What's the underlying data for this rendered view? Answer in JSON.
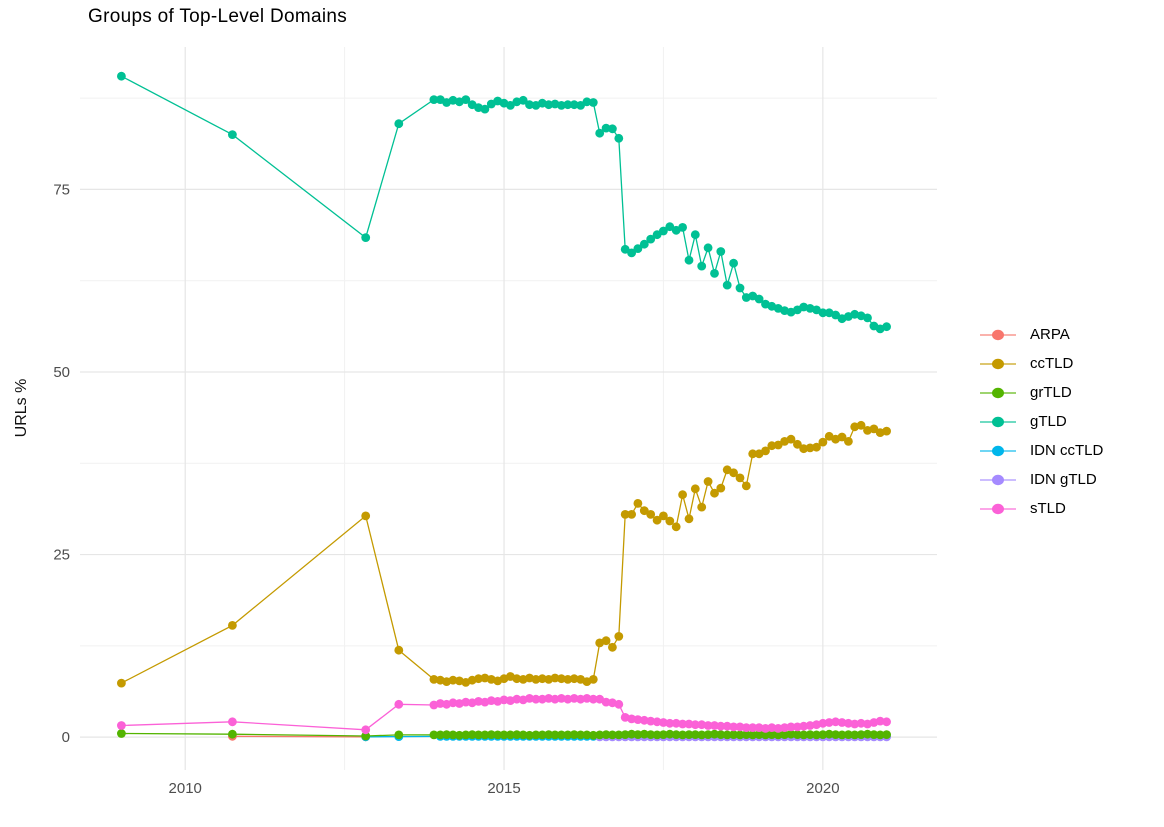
{
  "chart_data": {
    "type": "line",
    "title": "Groups of Top-Level Domains",
    "ylabel": "URLs %",
    "xlabel": "",
    "grid": true,
    "legend_position": "right",
    "xlim": [
      2008.35,
      2021.79
    ],
    "ylim": [
      -4.5,
      94.5
    ],
    "x_major_ticks": [
      2010,
      2015,
      2020
    ],
    "x_minor_ticks": [
      2012.5,
      2017.5
    ],
    "y_major_ticks": [
      0,
      25,
      50,
      75
    ],
    "y_minor_ticks": [
      12.5,
      37.5,
      62.5,
      87.5
    ],
    "colors": {
      "grid_major": "#e6e6e6",
      "grid_minor": "#f1f1f1",
      "tick_text": "#4d4d4d",
      "title_text": "#000000"
    },
    "series": [
      {
        "name": "ARPA",
        "color": "#F8766D",
        "zorder": 1,
        "points": [
          [
            2010.74,
            0.12
          ],
          [
            2012.83,
            0.05
          ]
        ]
      },
      {
        "name": "ccTLD",
        "color": "#C49A00",
        "zorder": 5,
        "points": [
          [
            2009.0,
            7.4
          ],
          [
            2010.74,
            15.3
          ],
          [
            2012.83,
            30.3
          ],
          [
            2013.35,
            11.9
          ],
          [
            2013.9,
            7.9
          ]
        ],
        "dense": {
          "x0": 2014.0,
          "dx": 0.1,
          "y": [
            7.8,
            7.6,
            7.8,
            7.7,
            7.5,
            7.8,
            8.0,
            8.1,
            7.9,
            7.7,
            8.0,
            8.3,
            8.0,
            7.9,
            8.1,
            7.9,
            8.0,
            7.9,
            8.1,
            8.0,
            7.9,
            8.0,
            7.9,
            7.6,
            7.9,
            12.9,
            13.2,
            12.3,
            13.8,
            30.5,
            30.5,
            32.0,
            31.0,
            30.5,
            29.7,
            30.3,
            29.6,
            28.8,
            33.2,
            29.9,
            34.0,
            31.5,
            35.0,
            33.4,
            34.1,
            36.6,
            36.2,
            35.5,
            34.4,
            38.8,
            38.8,
            39.2,
            39.9,
            40.0,
            40.5,
            40.8,
            40.1,
            39.5,
            39.6,
            39.7,
            40.4,
            41.2,
            40.8,
            41.1,
            40.5,
            42.5,
            42.7,
            42.0,
            42.2,
            41.7,
            41.9
          ]
        }
      },
      {
        "name": "grTLD",
        "color": "#53B400",
        "zorder": 4,
        "points": [
          [
            2009.0,
            0.5
          ],
          [
            2010.74,
            0.4
          ],
          [
            2012.83,
            0.15
          ],
          [
            2013.35,
            0.3
          ],
          [
            2013.9,
            0.3
          ]
        ],
        "dense": {
          "x0": 2014.0,
          "dx": 0.1,
          "y": [
            0.3,
            0.35,
            0.3,
            0.25,
            0.3,
            0.35,
            0.3,
            0.3,
            0.35,
            0.3,
            0.3,
            0.3,
            0.35,
            0.3,
            0.25,
            0.3,
            0.3,
            0.35,
            0.3,
            0.3,
            0.3,
            0.35,
            0.3,
            0.3,
            0.25,
            0.3,
            0.35,
            0.3,
            0.3,
            0.35,
            0.4,
            0.35,
            0.4,
            0.35,
            0.3,
            0.35,
            0.4,
            0.35,
            0.3,
            0.35,
            0.35,
            0.3,
            0.35,
            0.4,
            0.35,
            0.3,
            0.35,
            0.3,
            0.35,
            0.3,
            0.35,
            0.3,
            0.35,
            0.3,
            0.35,
            0.4,
            0.35,
            0.3,
            0.35,
            0.3,
            0.35,
            0.4,
            0.35,
            0.3,
            0.35,
            0.3,
            0.35,
            0.4,
            0.35,
            0.3,
            0.35
          ]
        }
      },
      {
        "name": "gTLD",
        "color": "#00C094",
        "zorder": 6,
        "points": [
          [
            2009.0,
            90.5
          ],
          [
            2010.74,
            82.5
          ],
          [
            2012.83,
            68.4
          ],
          [
            2013.35,
            84.0
          ],
          [
            2013.9,
            87.3
          ]
        ],
        "dense": {
          "x0": 2014.0,
          "dx": 0.1,
          "y": [
            87.3,
            86.9,
            87.2,
            87.0,
            87.3,
            86.6,
            86.2,
            86.0,
            86.7,
            87.1,
            86.8,
            86.5,
            87.0,
            87.2,
            86.6,
            86.5,
            86.8,
            86.6,
            86.7,
            86.5,
            86.6,
            86.6,
            86.5,
            87.0,
            86.9,
            82.7,
            83.4,
            83.3,
            82.0,
            66.8,
            66.3,
            66.9,
            67.5,
            68.2,
            68.8,
            69.3,
            69.9,
            69.4,
            69.8,
            65.3,
            68.8,
            64.5,
            67.0,
            63.5,
            66.5,
            61.9,
            64.9,
            61.5,
            60.2,
            60.4,
            60.0,
            59.3,
            59.0,
            58.7,
            58.4,
            58.2,
            58.5,
            58.9,
            58.7,
            58.5,
            58.1,
            58.1,
            57.8,
            57.3,
            57.6,
            57.9,
            57.7,
            57.4,
            56.3,
            55.9,
            56.2
          ]
        }
      },
      {
        "name": "IDN ccTLD",
        "color": "#00B6EB",
        "zorder": 2,
        "points": [
          [
            2012.83,
            0.05
          ],
          [
            2013.35,
            0.07
          ]
        ],
        "dense": {
          "x0": 2014.0,
          "dx": 0.1,
          "y": [
            0.1,
            0.1,
            0.1,
            0.1,
            0.1,
            0.1,
            0.1,
            0.1,
            0.1,
            0.1,
            0.1,
            0.1,
            0.1,
            0.1,
            0.1,
            0.1,
            0.1,
            0.1,
            0.1,
            0.1,
            0.1,
            0.1,
            0.1,
            0.1,
            0.1,
            0.1,
            0.1,
            0.1,
            0.1,
            0.1,
            0.1,
            0.1,
            0.1,
            0.1,
            0.1,
            0.1,
            0.1,
            0.1,
            0.1,
            0.1,
            0.1,
            0.1,
            0.1,
            0.1,
            0.1,
            0.1,
            0.1,
            0.1,
            0.1,
            0.1,
            0.1,
            0.1,
            0.1,
            0.1,
            0.1,
            0.1,
            0.1,
            0.1,
            0.1,
            0.1,
            0.1,
            0.1,
            0.1,
            0.1,
            0.1,
            0.1,
            0.1,
            0.1,
            0.1,
            0.1,
            0.1
          ]
        }
      },
      {
        "name": "IDN gTLD",
        "color": "#A58AFF",
        "zorder": 3,
        "points": [],
        "dense": {
          "x0": 2016.5,
          "dx": 0.1,
          "y": [
            0.03,
            0.03,
            0.03,
            0.03,
            0.03,
            0.03,
            0.03,
            0.03,
            0.03,
            0.03,
            0.03,
            0.03,
            0.03,
            0.03,
            0.03,
            0.03,
            0.03,
            0.03,
            0.03,
            0.03,
            0.03,
            0.03,
            0.03,
            0.03,
            0.03,
            0.03,
            0.03,
            0.03,
            0.03,
            0.03,
            0.03,
            0.03,
            0.03,
            0.03,
            0.03,
            0.03,
            0.03,
            0.03,
            0.03,
            0.03,
            0.03,
            0.03,
            0.03,
            0.03,
            0.03,
            0.03
          ]
        }
      },
      {
        "name": "sTLD",
        "color": "#FB61D7",
        "zorder": 7,
        "points": [
          [
            2009.0,
            1.6
          ],
          [
            2010.74,
            2.1
          ],
          [
            2012.83,
            1.0
          ],
          [
            2013.35,
            4.5
          ],
          [
            2013.9,
            4.4
          ]
        ],
        "dense": {
          "x0": 2014.0,
          "dx": 0.1,
          "y": [
            4.6,
            4.5,
            4.7,
            4.6,
            4.8,
            4.7,
            4.9,
            4.8,
            5.0,
            4.9,
            5.1,
            5.0,
            5.2,
            5.1,
            5.3,
            5.2,
            5.2,
            5.3,
            5.2,
            5.3,
            5.2,
            5.3,
            5.2,
            5.3,
            5.2,
            5.2,
            4.8,
            4.7,
            4.5,
            2.7,
            2.5,
            2.4,
            2.3,
            2.2,
            2.1,
            2.0,
            1.9,
            1.9,
            1.8,
            1.8,
            1.7,
            1.7,
            1.6,
            1.6,
            1.5,
            1.5,
            1.4,
            1.4,
            1.3,
            1.3,
            1.3,
            1.2,
            1.3,
            1.2,
            1.3,
            1.4,
            1.4,
            1.5,
            1.6,
            1.7,
            1.9,
            2.0,
            2.1,
            2.0,
            1.9,
            1.8,
            1.9,
            1.8,
            2.0,
            2.2,
            2.1
          ]
        }
      }
    ]
  }
}
